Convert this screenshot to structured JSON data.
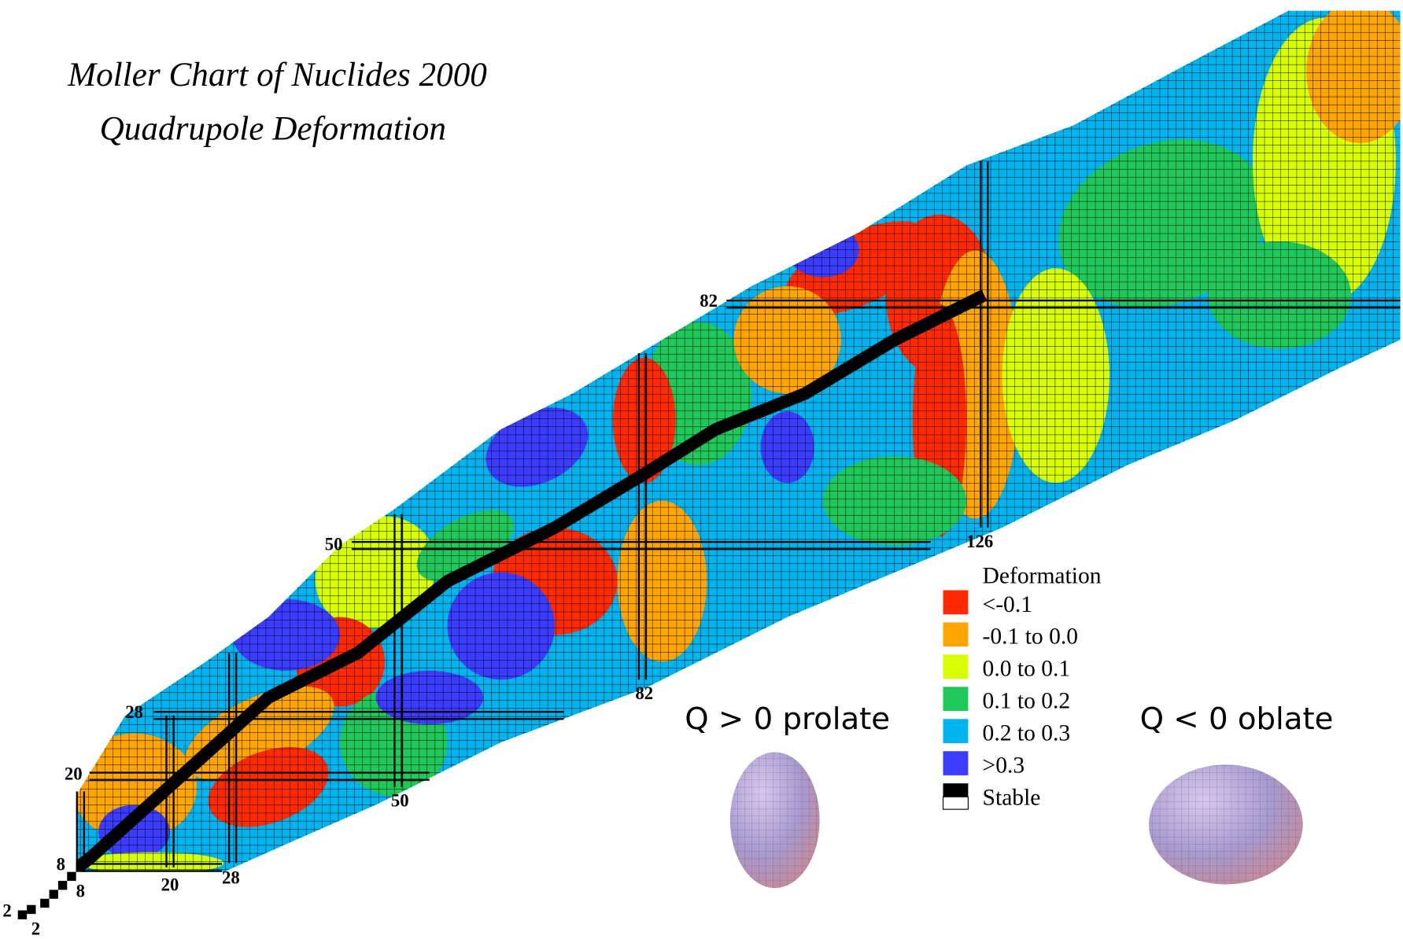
{
  "title": [
    "Moller Chart of Nuclides 2000",
    "Quadrupole Deformation"
  ],
  "magic_labels": [
    "2",
    "2",
    "8",
    "8",
    "20",
    "20",
    "28",
    "28",
    "50",
    "50",
    "82",
    "82",
    "126"
  ],
  "legend": {
    "title": "Deformation",
    "items": [
      {
        "label": "<-0.1",
        "color": "#ff2a00"
      },
      {
        "label": "-0.1 to 0.0",
        "color": "#ffa500"
      },
      {
        "label": "0.0 to 0.1",
        "color": "#d8ff00"
      },
      {
        "label": "0.1 to 0.2",
        "color": "#1fc85a"
      },
      {
        "label": "0.2 to 0.3",
        "color": "#00b4f0"
      },
      {
        "label": ">0.3",
        "color": "#3c3cff"
      },
      {
        "label": "Stable",
        "color": "#000000"
      }
    ]
  },
  "shapes": [
    "Q > 0 prolate",
    "Q < 0 oblate"
  ]
}
